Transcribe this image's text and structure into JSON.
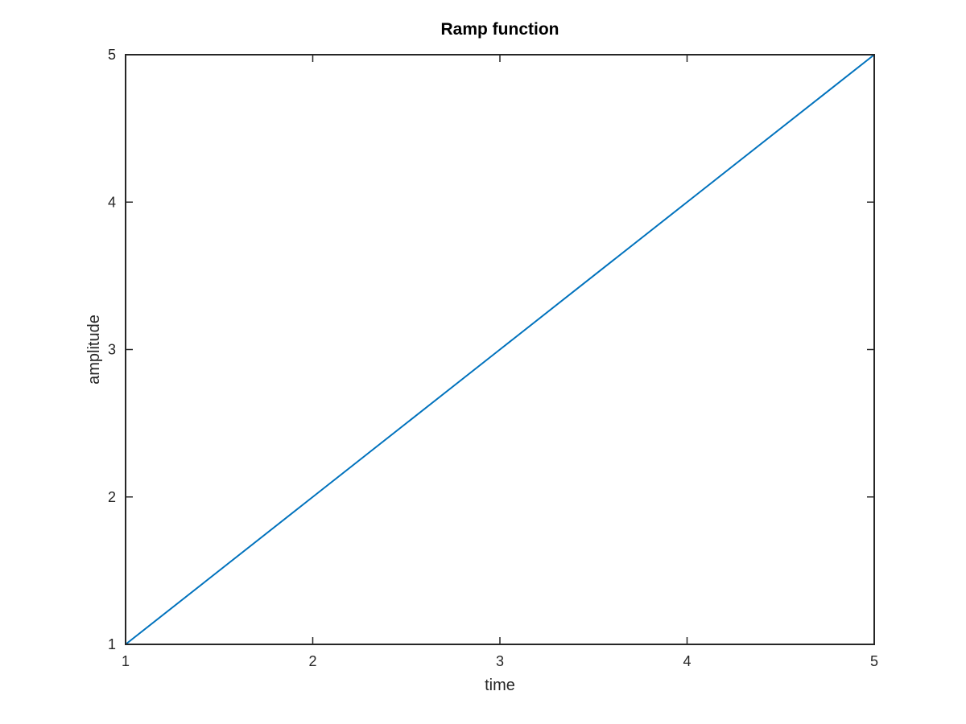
{
  "chart_data": {
    "type": "line",
    "title": "Ramp function",
    "xlabel": "time",
    "ylabel": "amplitude",
    "xlim": [
      1,
      5
    ],
    "ylim": [
      1,
      5
    ],
    "xticks": [
      1,
      2,
      3,
      4,
      5
    ],
    "yticks": [
      1,
      2,
      3,
      4,
      5
    ],
    "xtick_labels": [
      "1",
      "2",
      "3",
      "4",
      "5"
    ],
    "ytick_labels": [
      "1",
      "2",
      "3",
      "4",
      "5"
    ],
    "grid": false,
    "legend": "none",
    "series": [
      {
        "x": [
          1,
          2,
          3,
          4,
          5
        ],
        "y": [
          1,
          2,
          3,
          4,
          5
        ],
        "color": "#0072bd"
      }
    ],
    "axis_color": "#262626",
    "background_color": "#ffffff"
  }
}
